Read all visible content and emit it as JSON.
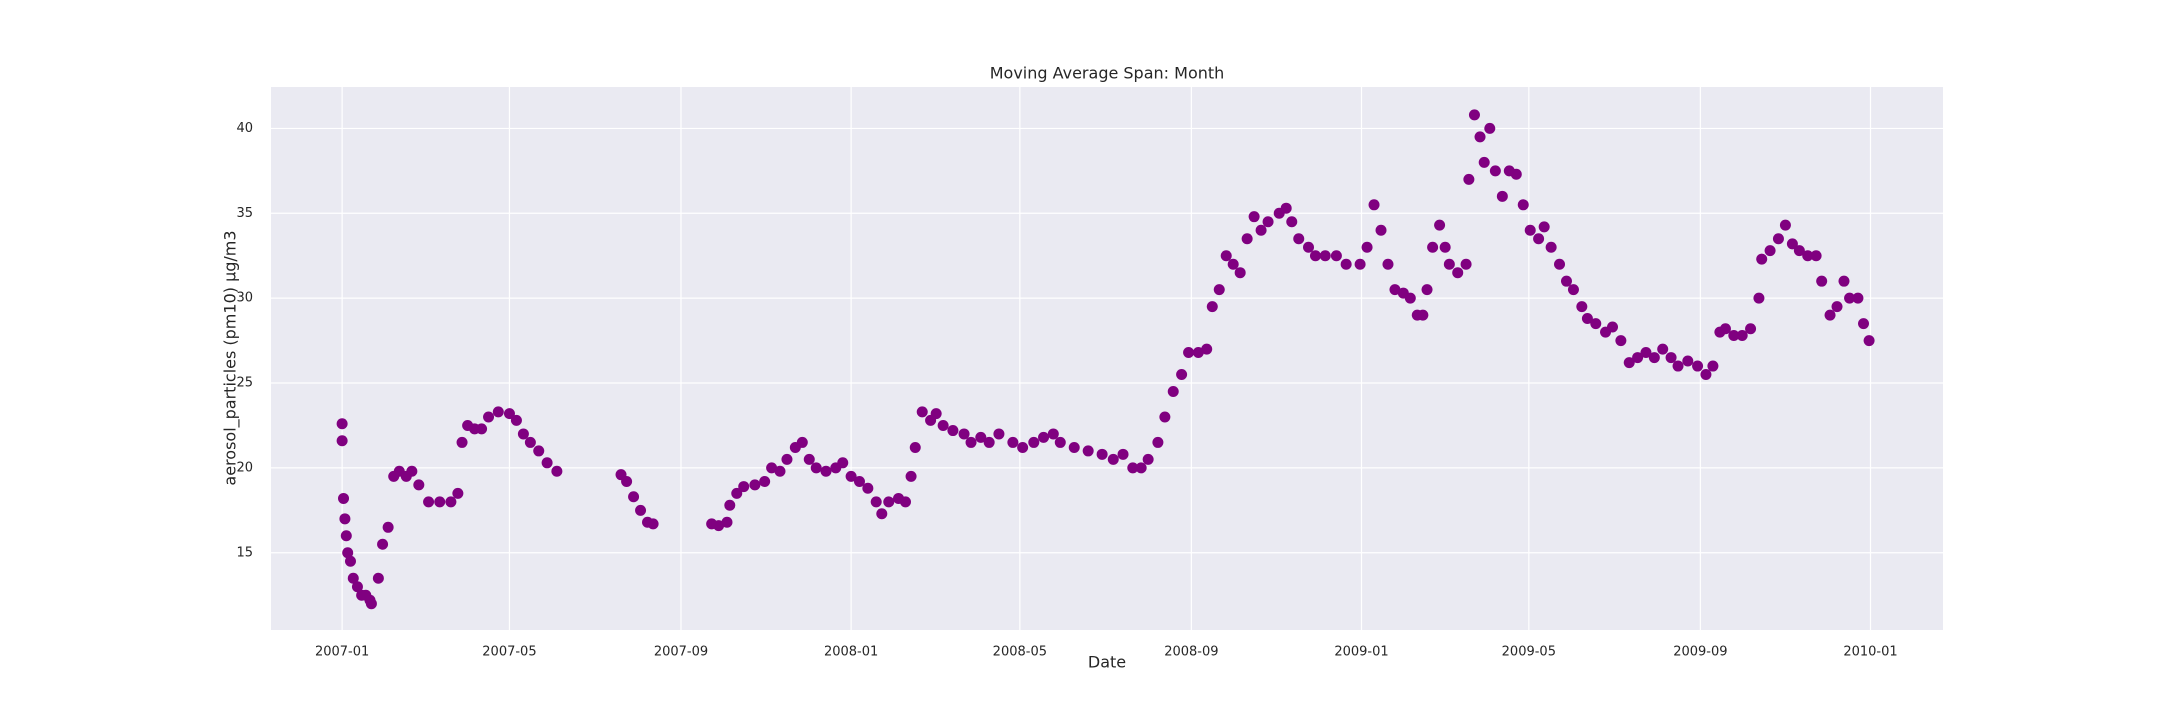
{
  "chart_data": {
    "type": "scatter",
    "title": "Moving Average Span: Month",
    "xlabel": "Date",
    "ylabel": "aerosol_particles (pm10) µg/m3",
    "color": "#800080",
    "grid": true,
    "xlim": [
      -51,
      1148
    ],
    "ylim": [
      10.45,
      42.44
    ],
    "xticks": [
      {
        "value": 0,
        "label": "2007-01"
      },
      {
        "value": 120,
        "label": "2007-05"
      },
      {
        "value": 243,
        "label": "2007-09"
      },
      {
        "value": 365,
        "label": "2008-01"
      },
      {
        "value": 486,
        "label": "2008-05"
      },
      {
        "value": 609,
        "label": "2008-09"
      },
      {
        "value": 731,
        "label": "2009-01"
      },
      {
        "value": 851,
        "label": "2009-05"
      },
      {
        "value": 974,
        "label": "2009-09"
      },
      {
        "value": 1096,
        "label": "2010-01"
      }
    ],
    "yticks": [
      15,
      20,
      25,
      30,
      35,
      40
    ],
    "x": [
      0,
      0,
      1,
      2,
      3,
      4,
      6,
      8,
      11,
      14,
      17,
      20,
      21,
      26,
      29,
      33,
      37,
      41,
      46,
      50,
      55,
      62,
      70,
      78,
      83,
      86,
      90,
      95,
      100,
      105,
      112,
      120,
      125,
      130,
      135,
      141,
      147,
      154,
      200,
      204,
      209,
      214,
      219,
      223,
      265,
      270,
      276,
      278,
      283,
      288,
      296,
      303,
      308,
      314,
      319,
      325,
      330,
      335,
      340,
      347,
      354,
      359,
      365,
      371,
      377,
      383,
      387,
      392,
      399,
      404,
      408,
      411,
      416,
      422,
      426,
      431,
      438,
      446,
      451,
      458,
      464,
      471,
      481,
      488,
      496,
      503,
      510,
      515,
      525,
      535,
      545,
      553,
      560,
      567,
      573,
      578,
      585,
      590,
      596,
      602,
      607,
      614,
      620,
      624,
      629,
      634,
      639,
      644,
      649,
      654,
      659,
      664,
      672,
      677,
      681,
      686,
      693,
      698,
      705,
      713,
      720,
      730,
      735,
      740,
      745,
      750,
      755,
      761,
      766,
      771,
      775,
      778,
      782,
      787,
      791,
      794,
      800,
      806,
      808,
      812,
      816,
      819,
      823,
      827,
      832,
      837,
      842,
      847,
      852,
      858,
      862,
      867,
      873,
      878,
      883,
      889,
      893,
      899,
      906,
      911,
      917,
      923,
      929,
      935,
      941,
      947,
      953,
      958,
      965,
      972,
      978,
      983,
      988,
      992,
      998,
      1004,
      1010,
      1016,
      1018,
      1024,
      1030,
      1035,
      1040,
      1045,
      1051,
      1057,
      1061,
      1067,
      1072,
      1077,
      1081,
      1087,
      1091,
      1095
    ],
    "values": [
      22.6,
      21.6,
      18.2,
      17,
      16,
      15,
      14.5,
      13.5,
      13,
      12.5,
      12.5,
      12.2,
      12,
      13.5,
      15.5,
      16.5,
      19.5,
      19.8,
      19.5,
      19.8,
      19,
      18,
      18,
      18,
      18.5,
      21.5,
      22.5,
      22.3,
      22.3,
      23,
      23.3,
      23.2,
      22.8,
      22,
      21.5,
      21,
      20.3,
      19.8,
      19.6,
      19.2,
      18.3,
      17.5,
      16.8,
      16.7,
      16.7,
      16.6,
      16.8,
      17.8,
      18.5,
      18.9,
      19,
      19.2,
      20,
      19.8,
      20.5,
      21.2,
      21.5,
      20.5,
      20,
      19.8,
      20,
      20.3,
      19.5,
      19.2,
      18.8,
      18,
      17.3,
      18,
      18.2,
      18,
      19.5,
      21.2,
      23.3,
      22.8,
      23.2,
      22.5,
      22.2,
      22,
      21.5,
      21.8,
      21.5,
      22,
      21.5,
      21.2,
      21.5,
      21.8,
      22,
      21.5,
      21.2,
      21,
      20.8,
      20.5,
      20.8,
      20,
      20,
      20.5,
      21.5,
      23,
      24.5,
      25.5,
      26.8,
      26.8,
      27,
      29.5,
      30.5,
      32.5,
      32,
      31.5,
      33.5,
      34.8,
      34,
      34.5,
      35,
      35.3,
      34.5,
      33.5,
      33,
      32.5,
      32.5,
      32.5,
      32,
      32,
      33,
      35.5,
      34,
      32,
      30.5,
      30.3,
      30,
      29,
      29,
      30.5,
      33,
      34.3,
      33,
      32,
      31.5,
      32,
      37,
      40.8,
      39.5,
      38,
      40,
      37.5,
      36,
      37.5,
      37.3,
      35.5,
      34,
      33.5,
      34.2,
      33,
      32,
      31,
      30.5,
      29.5,
      28.8,
      28.5,
      28,
      28.3,
      27.5,
      26.2,
      26.5,
      26.8,
      26.5,
      27,
      26.5,
      26,
      26.3,
      26,
      25.5,
      26,
      28,
      28.2,
      27.8,
      27.8,
      28.2,
      30,
      32.3,
      32.8,
      33.5,
      34.3,
      33.2,
      32.8,
      32.5,
      32.5,
      31,
      29,
      29.5,
      31,
      30,
      30,
      28.5,
      27.5
    ]
  }
}
